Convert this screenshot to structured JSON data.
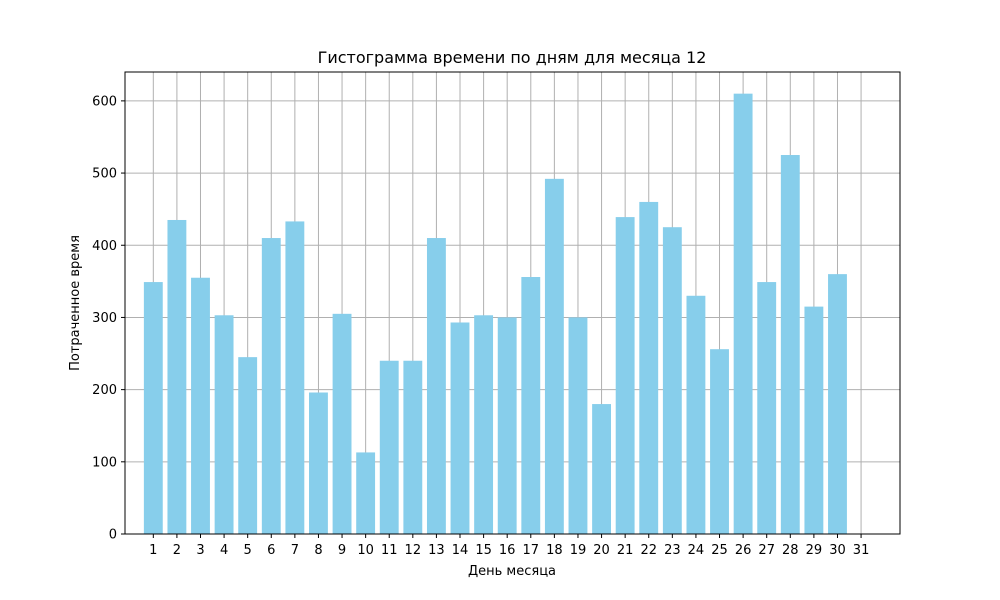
{
  "chart_data": {
    "type": "bar",
    "title": "Гистограмма времени по дням для месяца 12",
    "xlabel": "День месяца",
    "ylabel": "Потраченное время",
    "categories": [
      "1",
      "2",
      "3",
      "4",
      "5",
      "6",
      "7",
      "8",
      "9",
      "10",
      "11",
      "12",
      "13",
      "14",
      "15",
      "16",
      "17",
      "18",
      "19",
      "20",
      "21",
      "22",
      "23",
      "24",
      "25",
      "26",
      "27",
      "28",
      "29",
      "30",
      "31"
    ],
    "values": [
      349,
      435,
      355,
      303,
      245,
      410,
      433,
      196,
      305,
      113,
      240,
      240,
      410,
      293,
      303,
      300,
      356,
      492,
      300,
      180,
      439,
      460,
      425,
      330,
      256,
      610,
      349,
      525,
      315,
      360,
      null
    ],
    "yticks": [
      0,
      100,
      200,
      300,
      400,
      500,
      600
    ],
    "ylim": [
      0,
      640
    ],
    "grid": true,
    "bar_color": "#87ceeb",
    "grid_color": "#b0b0b0"
  }
}
